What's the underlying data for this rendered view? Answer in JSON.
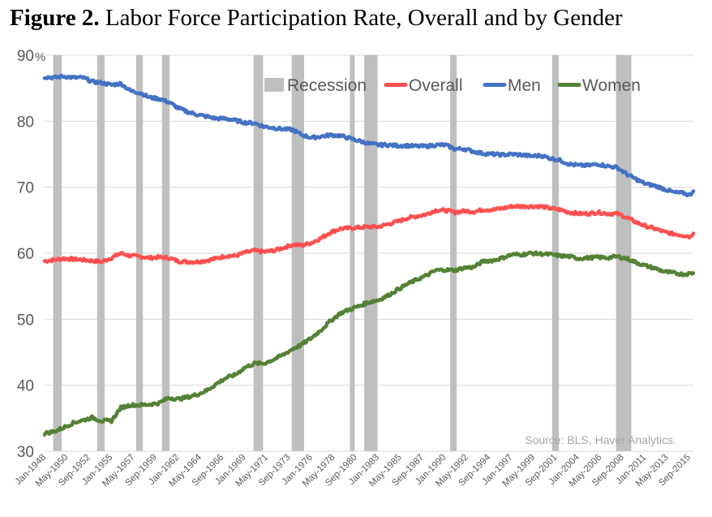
{
  "figure": {
    "label": "Figure 2.",
    "title": "Labor Force Participation Rate, Overall and by Gender",
    "source": "Source: BLS, Haver Analytics."
  },
  "chart_data": {
    "type": "line",
    "ylim": [
      30,
      90
    ],
    "y_ticks": [
      30,
      40,
      50,
      60,
      70,
      80,
      90
    ],
    "y_unit": "%",
    "x_start": 1948.0,
    "x_end": 2016.0,
    "x_tick_labels": [
      "Jan-1948",
      "May-1950",
      "Sep-1952",
      "Jan-1955",
      "May-1957",
      "Sep-1959",
      "Jan-1962",
      "May-1964",
      "Sep-1966",
      "Jan-1969",
      "May-1971",
      "Sep-1973",
      "Jan-1976",
      "May-1978",
      "Sep-1980",
      "Jan-1983",
      "May-1985",
      "Sep-1987",
      "Jan-1990",
      "May-1992",
      "Sep-1994",
      "Jan-1997",
      "May-1999",
      "Sep-2001",
      "Jan-2004",
      "May-2006",
      "Sep-2008",
      "Jan-2011",
      "May-2013",
      "Sep-2015"
    ],
    "grid": true,
    "legend_position": "top-right",
    "legend": [
      {
        "name": "Recession",
        "color": "#bfbfbf",
        "kind": "box"
      },
      {
        "name": "Overall",
        "color": "#ff5050",
        "kind": "line"
      },
      {
        "name": "Men",
        "color": "#4472c4",
        "kind": "line"
      },
      {
        "name": "Women",
        "color": "#548235",
        "kind": "line"
      }
    ],
    "recessions": [
      [
        1948.9,
        1949.8
      ],
      [
        1953.5,
        1954.3
      ],
      [
        1957.6,
        1958.3
      ],
      [
        1960.3,
        1961.1
      ],
      [
        1969.9,
        1970.9
      ],
      [
        1973.9,
        1975.2
      ],
      [
        1980.0,
        1980.5
      ],
      [
        1981.5,
        1982.9
      ],
      [
        1990.5,
        1991.2
      ],
      [
        2001.2,
        2001.9
      ],
      [
        2007.9,
        2009.5
      ]
    ],
    "series": [
      {
        "name": "Overall",
        "color": "#ff5050",
        "points": [
          [
            1948,
            58.8
          ],
          [
            1950,
            59.2
          ],
          [
            1952,
            59.0
          ],
          [
            1954,
            58.7
          ],
          [
            1955,
            59.3
          ],
          [
            1956,
            60.0
          ],
          [
            1957,
            59.6
          ],
          [
            1958,
            59.5
          ],
          [
            1959,
            59.3
          ],
          [
            1960,
            59.4
          ],
          [
            1961,
            59.3
          ],
          [
            1962,
            58.8
          ],
          [
            1963,
            58.7
          ],
          [
            1964,
            58.7
          ],
          [
            1965,
            58.9
          ],
          [
            1966,
            59.2
          ],
          [
            1967,
            59.6
          ],
          [
            1968,
            59.6
          ],
          [
            1969,
            60.1
          ],
          [
            1970,
            60.4
          ],
          [
            1971,
            60.2
          ],
          [
            1972,
            60.4
          ],
          [
            1973,
            60.8
          ],
          [
            1974,
            61.3
          ],
          [
            1975,
            61.2
          ],
          [
            1976,
            61.6
          ],
          [
            1977,
            62.3
          ],
          [
            1978,
            63.2
          ],
          [
            1979,
            63.7
          ],
          [
            1980,
            63.8
          ],
          [
            1981,
            63.9
          ],
          [
            1982,
            64.0
          ],
          [
            1983,
            64.0
          ],
          [
            1984,
            64.4
          ],
          [
            1985,
            64.8
          ],
          [
            1986,
            65.3
          ],
          [
            1987,
            65.6
          ],
          [
            1988,
            65.9
          ],
          [
            1989,
            66.5
          ],
          [
            1990,
            66.5
          ],
          [
            1991,
            66.2
          ],
          [
            1992,
            66.4
          ],
          [
            1993,
            66.3
          ],
          [
            1994,
            66.6
          ],
          [
            1995,
            66.6
          ],
          [
            1996,
            66.8
          ],
          [
            1997,
            67.1
          ],
          [
            1998,
            67.1
          ],
          [
            1999,
            67.1
          ],
          [
            2000,
            67.1
          ],
          [
            2001,
            66.8
          ],
          [
            2002,
            66.6
          ],
          [
            2003,
            66.2
          ],
          [
            2004,
            66.0
          ],
          [
            2005,
            66.0
          ],
          [
            2006,
            66.2
          ],
          [
            2007,
            66.0
          ],
          [
            2008,
            66.0
          ],
          [
            2009,
            65.4
          ],
          [
            2010,
            64.7
          ],
          [
            2011,
            64.1
          ],
          [
            2012,
            63.7
          ],
          [
            2013,
            63.2
          ],
          [
            2014,
            62.9
          ],
          [
            2015,
            62.7
          ],
          [
            2015.7,
            62.5
          ],
          [
            2016,
            63.0
          ]
        ]
      },
      {
        "name": "Men",
        "color": "#4472c4",
        "points": [
          [
            1948,
            86.7
          ],
          [
            1949,
            86.6
          ],
          [
            1950,
            86.8
          ],
          [
            1951,
            86.6
          ],
          [
            1952,
            86.6
          ],
          [
            1953,
            86.0
          ],
          [
            1954,
            85.8
          ],
          [
            1955,
            85.5
          ],
          [
            1956,
            85.7
          ],
          [
            1957,
            84.6
          ],
          [
            1958,
            84.3
          ],
          [
            1959,
            83.6
          ],
          [
            1960,
            83.4
          ],
          [
            1961,
            82.9
          ],
          [
            1962,
            82.0
          ],
          [
            1963,
            81.4
          ],
          [
            1964,
            81.0
          ],
          [
            1965,
            80.7
          ],
          [
            1966,
            80.4
          ],
          [
            1967,
            80.4
          ],
          [
            1968,
            80.1
          ],
          [
            1969,
            79.8
          ],
          [
            1970,
            79.7
          ],
          [
            1971,
            79.2
          ],
          [
            1972,
            79.0
          ],
          [
            1973,
            78.8
          ],
          [
            1974,
            78.7
          ],
          [
            1975,
            77.9
          ],
          [
            1976,
            77.5
          ],
          [
            1977,
            77.7
          ],
          [
            1978,
            77.9
          ],
          [
            1979,
            77.8
          ],
          [
            1980,
            77.4
          ],
          [
            1981,
            77.0
          ],
          [
            1982,
            76.6
          ],
          [
            1983,
            76.4
          ],
          [
            1984,
            76.4
          ],
          [
            1985,
            76.3
          ],
          [
            1986,
            76.3
          ],
          [
            1987,
            76.2
          ],
          [
            1988,
            76.2
          ],
          [
            1989,
            76.4
          ],
          [
            1990,
            76.4
          ],
          [
            1991,
            75.8
          ],
          [
            1992,
            75.8
          ],
          [
            1993,
            75.4
          ],
          [
            1994,
            75.1
          ],
          [
            1995,
            75.0
          ],
          [
            1996,
            74.9
          ],
          [
            1997,
            75.0
          ],
          [
            1998,
            74.9
          ],
          [
            1999,
            74.7
          ],
          [
            2000,
            74.8
          ],
          [
            2001,
            74.4
          ],
          [
            2002,
            74.1
          ],
          [
            2003,
            73.5
          ],
          [
            2004,
            73.3
          ],
          [
            2005,
            73.3
          ],
          [
            2006,
            73.5
          ],
          [
            2007,
            73.2
          ],
          [
            2008,
            73.0
          ],
          [
            2009,
            72.0
          ],
          [
            2010,
            71.2
          ],
          [
            2011,
            70.5
          ],
          [
            2012,
            70.2
          ],
          [
            2013,
            69.7
          ],
          [
            2014,
            69.2
          ],
          [
            2015,
            69.1
          ],
          [
            2015.6,
            68.8
          ],
          [
            2016,
            69.4
          ]
        ]
      },
      {
        "name": "Women",
        "color": "#548235",
        "points": [
          [
            1948,
            32.7
          ],
          [
            1949,
            33.0
          ],
          [
            1950,
            33.6
          ],
          [
            1951,
            34.3
          ],
          [
            1952,
            34.7
          ],
          [
            1953,
            35.1
          ],
          [
            1954,
            34.6
          ],
          [
            1955,
            34.6
          ],
          [
            1956,
            36.6
          ],
          [
            1957,
            37.0
          ],
          [
            1958,
            37.0
          ],
          [
            1959,
            37.1
          ],
          [
            1960,
            37.3
          ],
          [
            1961,
            38.1
          ],
          [
            1962,
            37.9
          ],
          [
            1963,
            38.2
          ],
          [
            1964,
            38.6
          ],
          [
            1965,
            39.2
          ],
          [
            1966,
            40.2
          ],
          [
            1967,
            41.1
          ],
          [
            1968,
            41.6
          ],
          [
            1969,
            42.7
          ],
          [
            1970,
            43.3
          ],
          [
            1971,
            43.3
          ],
          [
            1972,
            43.9
          ],
          [
            1973,
            44.6
          ],
          [
            1974,
            45.5
          ],
          [
            1975,
            46.2
          ],
          [
            1976,
            47.2
          ],
          [
            1977,
            48.4
          ],
          [
            1978,
            49.8
          ],
          [
            1979,
            50.9
          ],
          [
            1980,
            51.5
          ],
          [
            1981,
            52.0
          ],
          [
            1982,
            52.6
          ],
          [
            1983,
            52.9
          ],
          [
            1984,
            53.6
          ],
          [
            1985,
            54.5
          ],
          [
            1986,
            55.3
          ],
          [
            1987,
            56.0
          ],
          [
            1988,
            56.6
          ],
          [
            1989,
            57.4
          ],
          [
            1990,
            57.5
          ],
          [
            1991,
            57.4
          ],
          [
            1992,
            57.8
          ],
          [
            1993,
            57.9
          ],
          [
            1994,
            58.8
          ],
          [
            1995,
            58.9
          ],
          [
            1996,
            59.3
          ],
          [
            1997,
            59.8
          ],
          [
            1998,
            59.8
          ],
          [
            1999,
            60.0
          ],
          [
            2000,
            59.9
          ],
          [
            2001,
            59.8
          ],
          [
            2002,
            59.6
          ],
          [
            2003,
            59.5
          ],
          [
            2004,
            59.2
          ],
          [
            2005,
            59.3
          ],
          [
            2006,
            59.4
          ],
          [
            2007,
            59.3
          ],
          [
            2008,
            59.5
          ],
          [
            2009,
            59.2
          ],
          [
            2010,
            58.6
          ],
          [
            2011,
            58.1
          ],
          [
            2012,
            57.7
          ],
          [
            2013,
            57.2
          ],
          [
            2014,
            57.0
          ],
          [
            2015,
            56.8
          ],
          [
            2016,
            57.0
          ]
        ]
      }
    ]
  }
}
